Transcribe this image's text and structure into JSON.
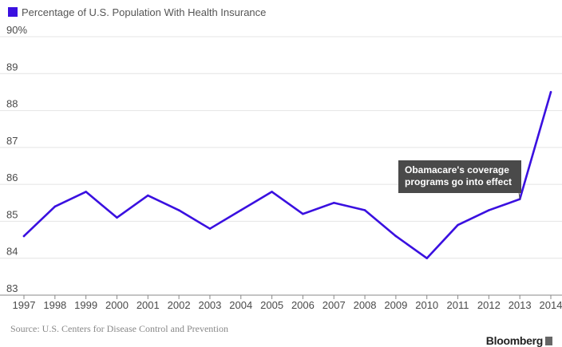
{
  "chart_data": {
    "type": "line",
    "legend": {
      "label": "Percentage of U.S. Population With Health Insurance",
      "color": "#3a10e0",
      "placement": "top-left"
    },
    "x": [
      1997,
      1998,
      1999,
      2000,
      2001,
      2002,
      2003,
      2004,
      2005,
      2006,
      2007,
      2008,
      2009,
      2010,
      2011,
      2012,
      2013,
      2014
    ],
    "series": [
      {
        "name": "Percentage of U.S. Population With Health Insurance",
        "color": "#3a10e0",
        "values": [
          84.6,
          85.4,
          85.8,
          85.1,
          85.7,
          85.3,
          84.8,
          85.3,
          85.8,
          85.2,
          85.5,
          85.3,
          84.6,
          84.0,
          84.9,
          85.3,
          85.6,
          88.5
        ]
      }
    ],
    "xlim": [
      1997,
      2014
    ],
    "ylim": [
      83,
      90
    ],
    "y_ticks": [
      83,
      84,
      85,
      86,
      87,
      88,
      89,
      90
    ],
    "y_tick_labels": [
      "83",
      "84",
      "85",
      "86",
      "87",
      "88",
      "89",
      "90%"
    ],
    "x_tick_labels": [
      "1997",
      "1998",
      "1999",
      "2000",
      "2001",
      "2002",
      "2003",
      "2004",
      "2005",
      "2006",
      "2007",
      "2008",
      "2009",
      "2010",
      "2011",
      "2012",
      "2013",
      "2014"
    ],
    "grid": true,
    "annotation": {
      "line1": "Obamacare's coverage",
      "line2": "programs go into effect",
      "x": 2013
    }
  },
  "source": "Source: U.S. Centers for Disease Control and Prevention",
  "brand": "Bloomberg"
}
